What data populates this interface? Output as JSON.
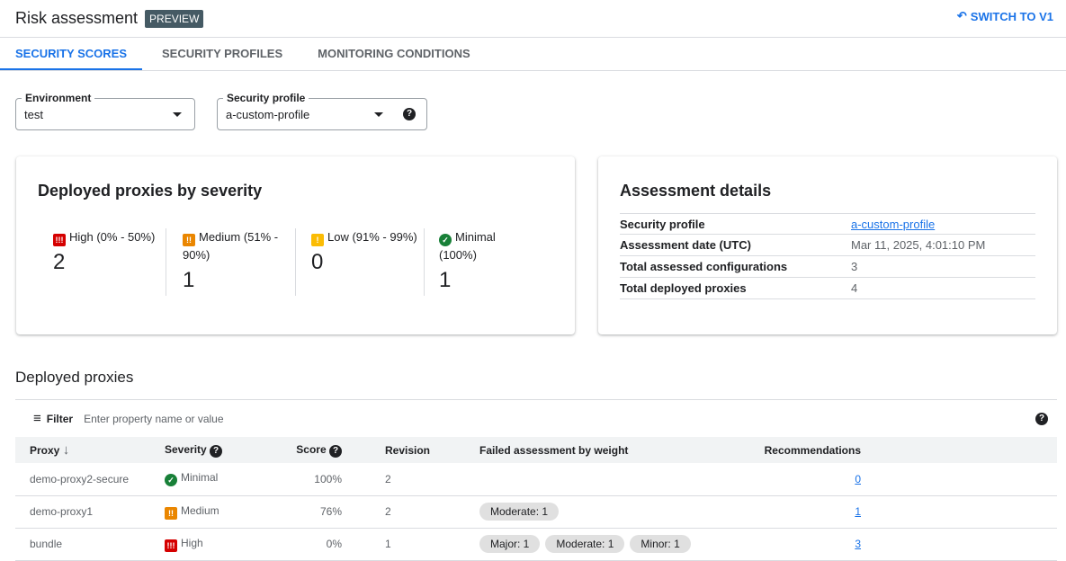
{
  "header": {
    "title": "Risk assessment",
    "badge": "PREVIEW",
    "switch_label": "SWITCH TO V1"
  },
  "tabs": [
    {
      "label": "SECURITY SCORES",
      "active": true
    },
    {
      "label": "SECURITY PROFILES"
    },
    {
      "label": "MONITORING CONDITIONS"
    }
  ],
  "filters": {
    "environment": {
      "label": "Environment",
      "value": "test"
    },
    "profile": {
      "label": "Security profile",
      "value": "a-custom-profile"
    }
  },
  "severity_card": {
    "title": "Deployed proxies by severity",
    "items": [
      {
        "label": "High (0% - 50%)",
        "count": "2",
        "icon": "!!!"
      },
      {
        "label": "Medium (51% - 90%)",
        "count": "1",
        "icon": "!!"
      },
      {
        "label": "Low (91% - 99%)",
        "count": "0",
        "icon": "!"
      },
      {
        "label": "Minimal (100%)",
        "count": "1",
        "icon": "✓"
      }
    ]
  },
  "details_card": {
    "title": "Assessment details",
    "rows": [
      {
        "key": "Security profile",
        "value": "a-custom-profile"
      },
      {
        "key": "Assessment date (UTC)",
        "value": "Mar 11, 2025, 4:01:10 PM"
      },
      {
        "key": "Total assessed configurations",
        "value": "3"
      },
      {
        "key": "Total deployed proxies",
        "value": "4"
      }
    ]
  },
  "proxies": {
    "title": "Deployed proxies",
    "filter_label": "Filter",
    "filter_placeholder": "Enter property name or value",
    "columns": [
      "Proxy",
      "Severity",
      "Score",
      "Revision",
      "Failed assessment by weight",
      "Recommendations"
    ],
    "rows": [
      {
        "proxy": "demo-proxy2-secure",
        "severity": "Minimal",
        "score": "100%",
        "revision": "2",
        "chips": [],
        "recs": "0"
      },
      {
        "proxy": "demo-proxy1",
        "severity": "Medium",
        "score": "76%",
        "revision": "2",
        "chips": [
          "Moderate: 1"
        ],
        "recs": "1"
      },
      {
        "proxy": "bundle",
        "severity": "High",
        "score": "0%",
        "revision": "1",
        "chips": [
          "Major: 1",
          "Moderate: 1",
          "Minor: 1"
        ],
        "recs": "3"
      }
    ]
  },
  "colors": {
    "accent": "#1a73e8",
    "high": "#d50000",
    "medium": "#ea8600",
    "low": "#fbbc04",
    "minimal": "#188038"
  }
}
